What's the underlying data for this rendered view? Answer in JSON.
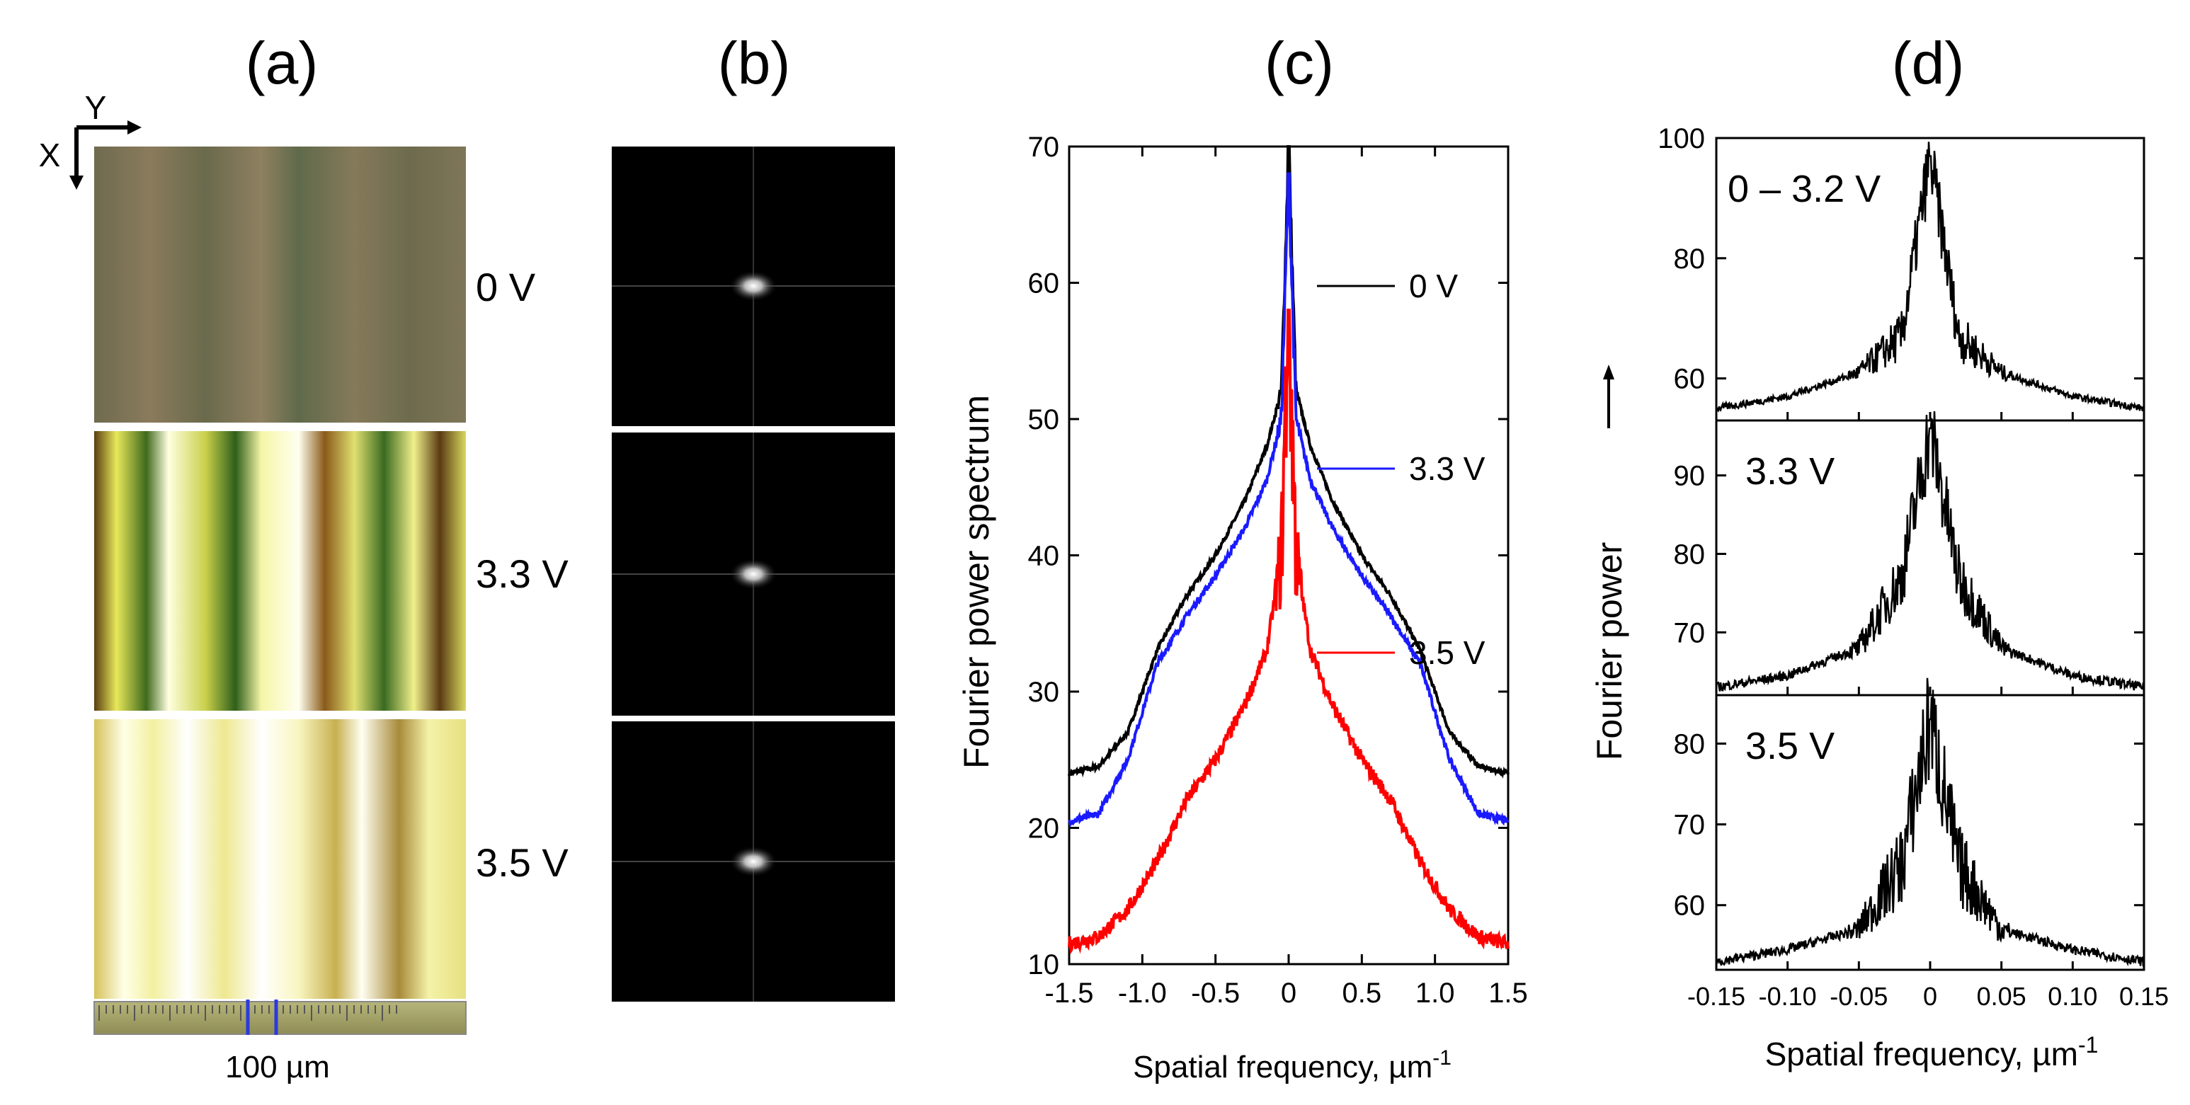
{
  "panels": {
    "a": {
      "label": "(a)",
      "axis_x": "X",
      "axis_y": "Y",
      "images": [
        {
          "voltage": "0 V"
        },
        {
          "voltage": "3.3 V"
        },
        {
          "voltage": "3.5 V"
        }
      ],
      "scale_bar": "100 µm"
    },
    "b": {
      "label": "(b)"
    },
    "c": {
      "label": "(c)"
    },
    "d": {
      "label": "(d)"
    }
  },
  "colors": {
    "0V": "#000000",
    "3.3V": "#1a1aff",
    "3.5V": "#ff0000",
    "noise": "#000000"
  },
  "chart_data": [
    {
      "panel": "c",
      "type": "line",
      "xlabel": "Spatial frequency, µm",
      "xlabel_sup": "-1",
      "ylabel": "Fourier power spectrum",
      "xlim": [
        -1.5,
        1.5
      ],
      "ylim": [
        10,
        70
      ],
      "xticks": [
        "-1.5",
        "-1.0",
        "-0.5",
        "0",
        "0.5",
        "1.0",
        "1.5"
      ],
      "yticks": [
        "10",
        "20",
        "30",
        "40",
        "50",
        "60",
        "70"
      ],
      "x": [
        -1.5,
        -1.3,
        -1.1,
        -0.9,
        -0.7,
        -0.5,
        -0.3,
        -0.15,
        -0.05,
        0,
        0.05,
        0.15,
        0.3,
        0.5,
        0.7,
        0.9,
        1.1,
        1.3,
        1.5
      ],
      "series": [
        {
          "name": "0 V",
          "values": [
            24,
            24.5,
            27,
            33,
            37,
            40,
            44,
            48,
            52,
            70,
            52,
            48,
            44,
            40,
            37,
            33,
            27,
            24.5,
            24
          ]
        },
        {
          "name": "3.3 V",
          "values": [
            20.5,
            21,
            25,
            32,
            35.5,
            38.5,
            42,
            45.5,
            50,
            68,
            50,
            45.5,
            42,
            38.5,
            35.5,
            32,
            25,
            21,
            20.5
          ]
        },
        {
          "name": "3.5 V",
          "values": [
            11.5,
            12,
            14,
            17.5,
            22,
            25,
            29,
            33,
            40,
            58,
            40,
            33,
            29,
            25,
            22,
            17.5,
            14,
            12,
            11.5
          ]
        }
      ]
    },
    {
      "panel": "d",
      "type": "line",
      "xlabel": "Spatial frequency, µm",
      "xlabel_sup": "-1",
      "ylabel": "Fourier power",
      "xlim": [
        -0.15,
        0.15
      ],
      "xticks": [
        "-0.15",
        "-0.10",
        "-0.05",
        "0",
        "0.05",
        "0.10",
        "0.15"
      ],
      "subplots": [
        {
          "name": "0 – 3.2 V",
          "ylim": [
            53,
            100
          ],
          "yticks": [
            "60",
            "80",
            "100"
          ],
          "x": [
            -0.15,
            -0.1,
            -0.05,
            -0.02,
            0,
            0.02,
            0.05,
            0.1,
            0.15
          ],
          "values": [
            55,
            57,
            61,
            67,
            97,
            67,
            61,
            57,
            55
          ]
        },
        {
          "name": "3.3 V",
          "ylim": [
            62,
            97
          ],
          "yticks": [
            "70",
            "80",
            "90"
          ],
          "x": [
            -0.15,
            -0.1,
            -0.05,
            -0.02,
            0,
            0.02,
            0.05,
            0.1,
            0.15
          ],
          "values": [
            63,
            64.5,
            68,
            77,
            96,
            77,
            68,
            64.5,
            63
          ]
        },
        {
          "name": "3.5 V",
          "ylim": [
            52,
            86
          ],
          "yticks": [
            "60",
            "70",
            "80"
          ],
          "x": [
            -0.15,
            -0.1,
            -0.05,
            -0.02,
            0,
            0.02,
            0.05,
            0.1,
            0.15
          ],
          "values": [
            53,
            54.5,
            57,
            65,
            83,
            65,
            57,
            54.5,
            53
          ]
        }
      ]
    }
  ]
}
